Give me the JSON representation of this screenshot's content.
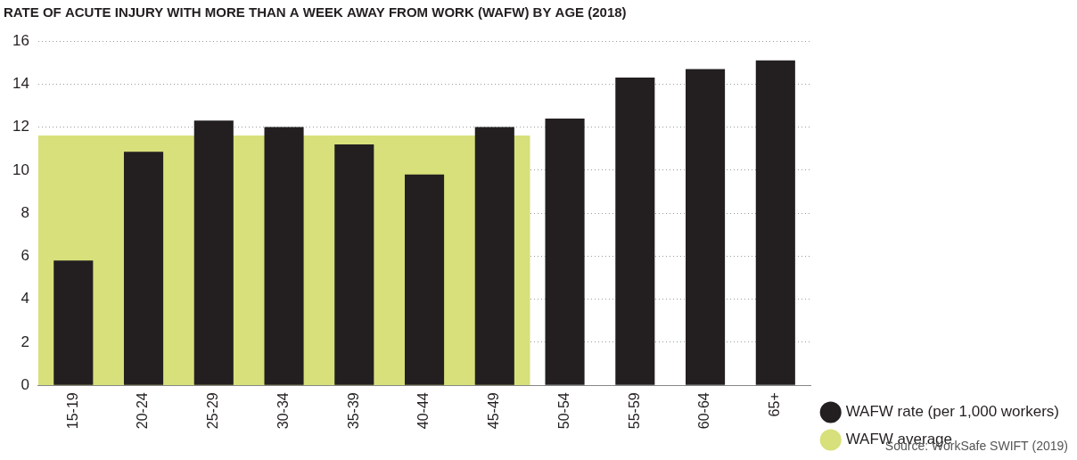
{
  "chart_data": {
    "type": "bar",
    "title": "RATE OF ACUTE INJURY WITH MORE THAN A WEEK AWAY FROM WORK (WAFW) BY AGE (2018)",
    "source": "Source: WorkSafe SWIFT (2019)",
    "categories": [
      "15-19",
      "20-24",
      "25-29",
      "30-34",
      "35-39",
      "40-44",
      "45-49",
      "50-54",
      "55-59",
      "60-64",
      "65+"
    ],
    "series": [
      {
        "name": "WAFW rate (per 1,000 workers)",
        "color": "#231f20",
        "values": [
          5.8,
          10.85,
          12.3,
          12.0,
          11.2,
          9.8,
          12.0,
          12.4,
          14.3,
          14.7,
          15.1
        ]
      },
      {
        "name": "WAFW average",
        "color": "#d7e07a",
        "values": [
          11.6,
          11.6,
          11.6,
          11.6,
          11.6,
          11.6,
          11.6,
          null,
          null,
          null,
          null
        ]
      }
    ],
    "ylim": [
      0,
      16
    ],
    "yticks": [
      0,
      2,
      4,
      6,
      8,
      10,
      12,
      14,
      16
    ],
    "grid": true,
    "legend": "bottom right"
  }
}
